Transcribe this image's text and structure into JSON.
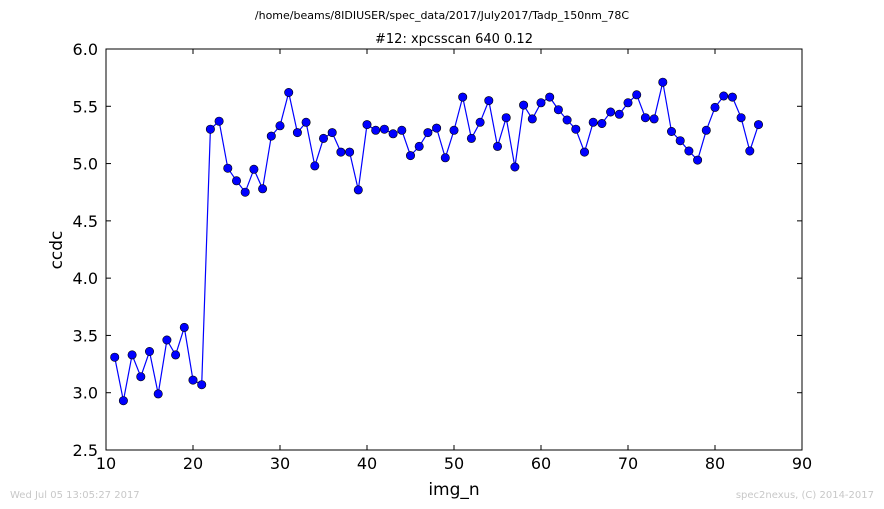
{
  "figure": {
    "suptitle": "/home/beams/8IDIUSER/spec_data/2017/July2017/Tadp_150nm_78C",
    "timestamp": "Wed Jul 05 13:05:27 2017",
    "credit": "spec2nexus, (C) 2014-2017"
  },
  "chart_data": {
    "type": "line",
    "title": "#12: xpcsscan 640 0.12",
    "xlabel": "img_n",
    "ylabel": "ccdc",
    "xlim": [
      10,
      90
    ],
    "ylim": [
      2.5,
      6.0
    ],
    "xticks": [
      10,
      20,
      30,
      40,
      50,
      60,
      70,
      80,
      90
    ],
    "yticks": [
      2.5,
      3.0,
      3.5,
      4.0,
      4.5,
      5.0,
      5.5,
      6.0
    ],
    "grid": false,
    "line_color": "#0000ff",
    "marker": "circle",
    "series": [
      {
        "x": [
          11,
          12,
          13,
          14,
          15,
          16,
          17,
          18,
          19,
          20,
          21,
          22,
          23,
          24,
          25,
          26,
          27,
          28,
          29,
          30,
          31,
          32,
          33,
          34,
          35,
          36,
          37,
          38,
          39,
          40,
          41,
          42,
          43,
          44,
          45,
          46,
          47,
          48,
          49,
          50,
          51,
          52,
          53,
          54,
          55,
          56,
          57,
          58,
          59,
          60,
          61,
          62,
          63,
          64,
          65,
          66,
          67,
          68,
          69,
          70,
          71,
          72,
          73,
          74,
          75,
          76,
          77,
          78,
          79,
          80,
          81,
          82,
          83,
          84,
          85
        ],
        "values": [
          3.31,
          2.93,
          3.33,
          3.14,
          3.36,
          2.99,
          3.46,
          3.33,
          3.57,
          3.11,
          3.07,
          5.3,
          5.37,
          4.96,
          4.85,
          4.75,
          4.95,
          4.78,
          5.24,
          5.33,
          5.62,
          5.27,
          5.36,
          4.98,
          5.22,
          5.27,
          5.1,
          5.1,
          4.77,
          5.34,
          5.29,
          5.3,
          5.26,
          5.29,
          5.07,
          5.15,
          5.27,
          5.31,
          5.05,
          5.29,
          5.58,
          5.22,
          5.36,
          5.55,
          5.15,
          5.4,
          4.97,
          5.51,
          5.39,
          5.53,
          5.58,
          5.47,
          5.38,
          5.3,
          5.1,
          5.36,
          5.35,
          5.45,
          5.43,
          5.53,
          5.6,
          5.4,
          5.39,
          5.71,
          5.28,
          5.2,
          5.11,
          5.03,
          5.29,
          5.49,
          5.59,
          5.58,
          5.4,
          5.11,
          5.34
        ]
      }
    ]
  }
}
